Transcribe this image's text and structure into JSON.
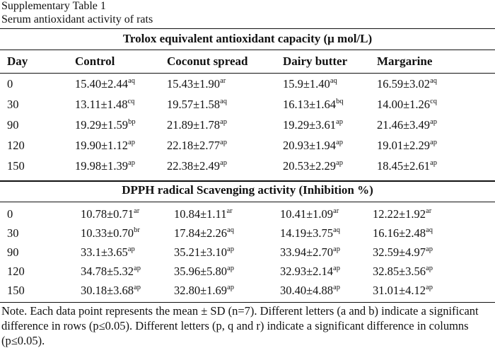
{
  "caption": {
    "label": "Supplementary Table 1",
    "title": "Serum antioxidant activity of rats"
  },
  "table": {
    "sections": [
      {
        "title": "Trolox equivalent antioxidant capacity (μ mol/L)",
        "columns": [
          "Day",
          "Control",
          "Coconut spread",
          "Dairy butter",
          "Margarine"
        ],
        "rows": [
          {
            "day": "0",
            "cells": [
              {
                "v": "15.40±2.44",
                "s": "aq"
              },
              {
                "v": "15.43±1.90",
                "s": "ar"
              },
              {
                "v": "15.9±1.40",
                "s": "aq"
              },
              {
                "v": "16.59±3.02",
                "s": "aq"
              }
            ]
          },
          {
            "day": "30",
            "cells": [
              {
                "v": "13.11±1.48",
                "s": "cq"
              },
              {
                "v": "19.57±1.58",
                "s": "aq"
              },
              {
                "v": "16.13±1.64",
                "s": "bq"
              },
              {
                "v": "14.00±1.26",
                "s": "cq"
              }
            ]
          },
          {
            "day": "90",
            "cells": [
              {
                "v": "19.29±1.59",
                "s": "bp"
              },
              {
                "v": "21.89±1.78",
                "s": "ap"
              },
              {
                "v": "19.29±3.61",
                "s": "ap"
              },
              {
                "v": "21.46±3.49",
                "s": "ap"
              }
            ]
          },
          {
            "day": "120",
            "cells": [
              {
                "v": "19.90±1.12",
                "s": "ap"
              },
              {
                "v": "22.18±2.77",
                "s": "ap"
              },
              {
                "v": "20.93±1.94",
                "s": "ap"
              },
              {
                "v": "19.01±2.29",
                "s": "ap"
              }
            ]
          },
          {
            "day": "150",
            "cells": [
              {
                "v": "19.98±1.39",
                "s": "ap"
              },
              {
                "v": "22.38±2.49",
                "s": "ap"
              },
              {
                "v": "20.53±2.29",
                "s": "ap"
              },
              {
                "v": "18.45±2.61",
                "s": "ap"
              }
            ]
          }
        ]
      },
      {
        "title": "DPPH radical Scavenging activity (Inhibition %)",
        "rows": [
          {
            "day": "0",
            "cells": [
              {
                "v": "10.78±0.71",
                "s": "ar"
              },
              {
                "v": "10.84±1.11",
                "s": "ar"
              },
              {
                "v": "10.41±1.09",
                "s": "ar"
              },
              {
                "v": "12.22±1.92",
                "s": "ar"
              }
            ]
          },
          {
            "day": "30",
            "cells": [
              {
                "v": "10.33±0.70",
                "s": "br"
              },
              {
                "v": "17.84±2.26",
                "s": "aq"
              },
              {
                "v": "14.19±3.75",
                "s": "aq"
              },
              {
                "v": "16.16±2.48",
                "s": "aq"
              }
            ]
          },
          {
            "day": "90",
            "cells": [
              {
                "v": "33.1±3.65",
                "s": "ap"
              },
              {
                "v": "35.21±3.10",
                "s": "ap"
              },
              {
                "v": "33.94±2.70",
                "s": "ap"
              },
              {
                "v": "32.59±4.97",
                "s": "ap"
              }
            ]
          },
          {
            "day": "120",
            "cells": [
              {
                "v": "34.78±5.32",
                "s": "ap"
              },
              {
                "v": "35.96±5.80",
                "s": "ap"
              },
              {
                "v": "32.93±2.14",
                "s": "ap"
              },
              {
                "v": "32.85±3.56",
                "s": "ap"
              }
            ]
          },
          {
            "day": "150",
            "cells": [
              {
                "v": "30.18±3.68",
                "s": "ap"
              },
              {
                "v": "32.80±1.69",
                "s": "ap"
              },
              {
                "v": "30.40±4.88",
                "s": "ap"
              },
              {
                "v": "31.01±4.12",
                "s": "ap"
              }
            ]
          }
        ]
      }
    ]
  },
  "note": "Note. Each data point represents the mean ± SD (n=7). Different letters (a and b) indicate a significant difference in rows (p≤0.05). Different letters (p, q and r) indicate a significant difference in columns (p≤0.05)."
}
